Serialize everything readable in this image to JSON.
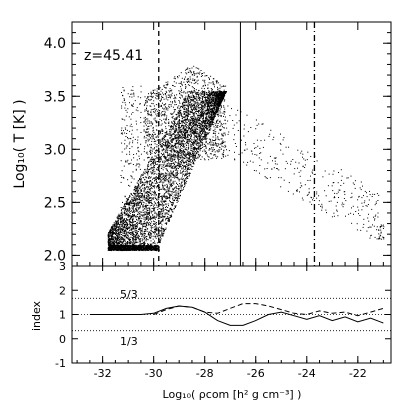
{
  "chart_data": [
    {
      "type": "scatter",
      "title": "",
      "annotation": "z=45.41",
      "ylabel": "Log₁₀( T [K] )",
      "xlim": [
        -33.2,
        -20.7
      ],
      "ylim": [
        1.9,
        4.2
      ],
      "xticks": [
        -32,
        -30,
        -28,
        -26,
        -24,
        -22
      ],
      "yticks": [
        2.0,
        2.5,
        3.0,
        3.5,
        4.0
      ],
      "ytick_labels": [
        "2.0",
        "2.5",
        "3.0",
        "3.5",
        "4.0"
      ],
      "vertical_lines": [
        {
          "x": -29.8,
          "style": "dashed"
        },
        {
          "x": -26.6,
          "style": "solid"
        },
        {
          "x": -23.7,
          "style": "dashdot"
        }
      ],
      "point_regions": [
        {
          "name": "dense band",
          "x": [
            -31.8,
            -26.9
          ],
          "y": [
            2.05,
            3.55
          ],
          "density": "high"
        },
        {
          "name": "diffuse plume",
          "x": [
            -30.5,
            -27.2
          ],
          "y": [
            2.9,
            3.9
          ],
          "density": "medium"
        },
        {
          "name": "sparse tail",
          "x": [
            -27.2,
            -21.2
          ],
          "y": [
            2.2,
            3.2
          ],
          "density": "low"
        }
      ]
    },
    {
      "type": "line",
      "ylabel": "index",
      "xlabel": "Log₁₀( ρcom [h² g cm⁻³] )",
      "xlim": [
        -33.2,
        -20.7
      ],
      "ylim": [
        -1,
        3
      ],
      "xticks": [
        -32,
        -30,
        -28,
        -26,
        -24,
        -22
      ],
      "xtick_labels": [
        "-32",
        "-30",
        "-28",
        "-26",
        "-24",
        "-22"
      ],
      "yticks": [
        -1,
        0,
        1,
        2,
        3
      ],
      "ytick_labels": [
        "-1",
        "0",
        "1",
        "2",
        "3"
      ],
      "reference_lines": [
        {
          "y": 1.667,
          "label": "5/3",
          "style": "dotted"
        },
        {
          "y": 1.0,
          "style": "dotted"
        },
        {
          "y": 0.333,
          "label": "1/3",
          "style": "dotted"
        }
      ],
      "series": [
        {
          "style": "solid",
          "x": [
            -32.5,
            -31.5,
            -30.5,
            -30.0,
            -29.5,
            -29.0,
            -28.5,
            -28.0,
            -27.5,
            -27.0,
            -26.5,
            -26.0,
            -25.5,
            -25.0,
            -24.5,
            -24.0,
            -23.5,
            -23.0,
            -22.5,
            -22.0,
            -21.5,
            -21.0
          ],
          "y": [
            1.0,
            1.0,
            1.0,
            1.05,
            1.25,
            1.35,
            1.3,
            1.1,
            0.75,
            0.55,
            0.55,
            0.75,
            1.0,
            1.1,
            0.95,
            0.8,
            0.95,
            0.75,
            0.9,
            0.7,
            0.85,
            0.65
          ]
        },
        {
          "style": "dashed",
          "x": [
            -30.0,
            -29.5,
            -29.0,
            -28.5,
            -28.0,
            -27.5,
            -27.0,
            -26.5,
            -26.0,
            -25.5,
            -25.0,
            -24.5,
            -24.0,
            -23.5,
            -23.0,
            -22.5,
            -22.0,
            -21.5,
            -21.0
          ],
          "y": [
            1.0,
            1.2,
            1.35,
            1.3,
            1.1,
            1.05,
            1.25,
            1.45,
            1.45,
            1.35,
            1.2,
            1.05,
            1.0,
            1.15,
            1.05,
            1.1,
            0.95,
            1.1,
            1.25
          ]
        }
      ]
    }
  ]
}
